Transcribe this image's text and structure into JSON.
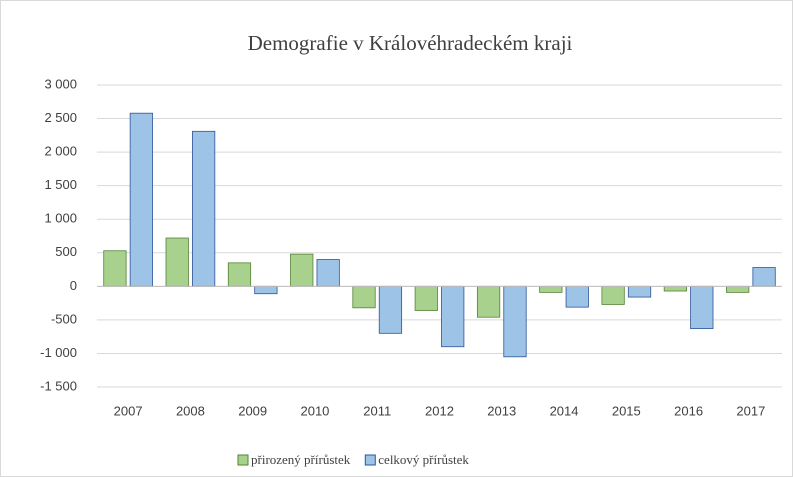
{
  "chart_data": {
    "type": "bar",
    "title": "Demografie  v Královéhradeckém  kraji",
    "categories": [
      "2007",
      "2008",
      "2009",
      "2010",
      "2011",
      "2012",
      "2013",
      "2014",
      "2015",
      "2016",
      "2017"
    ],
    "series": [
      {
        "name": "přirozený přírůstek",
        "color": "#a9d18e",
        "values": [
          530,
          720,
          350,
          480,
          -320,
          -360,
          -460,
          -90,
          -270,
          -70,
          -90
        ]
      },
      {
        "name": "celkový přírůstek",
        "color": "#9dc3e6",
        "values": [
          2580,
          2310,
          -110,
          400,
          -700,
          -900,
          -1050,
          -310,
          -160,
          -630,
          280
        ]
      }
    ],
    "ylim": [
      -1500,
      3000
    ],
    "yticks": [
      {
        "value": -1500,
        "label": "-1 500"
      },
      {
        "value": -1000,
        "label": "-1 000"
      },
      -500,
      0,
      500,
      {
        "value": 1000,
        "label": "1 000"
      },
      {
        "value": 1500,
        "label": "1 500"
      },
      {
        "value": 2000,
        "label": "2 000"
      },
      {
        "value": 2500,
        "label": "2 500"
      },
      {
        "value": 3000,
        "label": "3 000"
      }
    ],
    "grid": true,
    "legend": "bottom"
  }
}
